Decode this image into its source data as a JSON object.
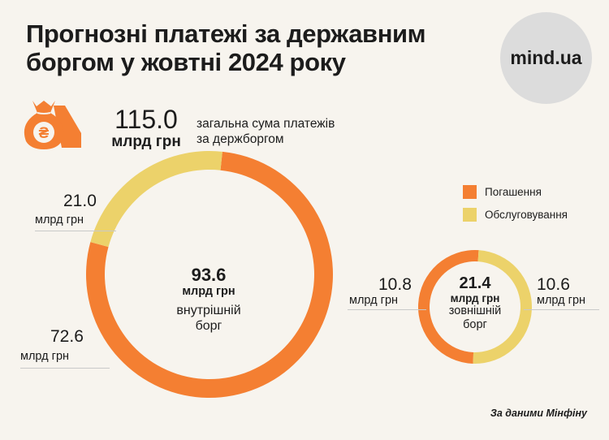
{
  "header": {
    "title": "Прогнозні платежі за державним боргом у жовтні 2024 року",
    "logo": "mind.ua"
  },
  "summary": {
    "icon": "money-bag-hryvnia-icon",
    "value": "115.0",
    "unit": "млрд грн",
    "description_line1": "загальна сума платежів",
    "description_line2": "за держборгом"
  },
  "colors": {
    "repayment": "#f47f32",
    "servicing": "#ecd26a",
    "bag": "#f47f32"
  },
  "chart_data": [
    {
      "type": "pie",
      "donut": true,
      "center_value": "93.6",
      "center_unit": "млрд грн",
      "center_label_line1": "внутрішній",
      "center_label_line2": "борг",
      "categories": [
        "Погашення",
        "Обслуговування"
      ],
      "values": [
        72.6,
        21.0
      ],
      "value_labels": [
        "72.6",
        "21.0"
      ],
      "unit": "млрд грн"
    },
    {
      "type": "pie",
      "donut": true,
      "center_value": "21.4",
      "center_unit": "млрд грн",
      "center_label_line1": "зовнішній",
      "center_label_line2": "борг",
      "categories": [
        "Погашення",
        "Обслуговування"
      ],
      "values": [
        10.8,
        10.6
      ],
      "value_labels": [
        "10.8",
        "10.6"
      ],
      "unit": "млрд грн"
    }
  ],
  "legend": [
    {
      "label": "Погашення"
    },
    {
      "label": "Обслуговування"
    }
  ],
  "source": "За даними Мінфіну"
}
